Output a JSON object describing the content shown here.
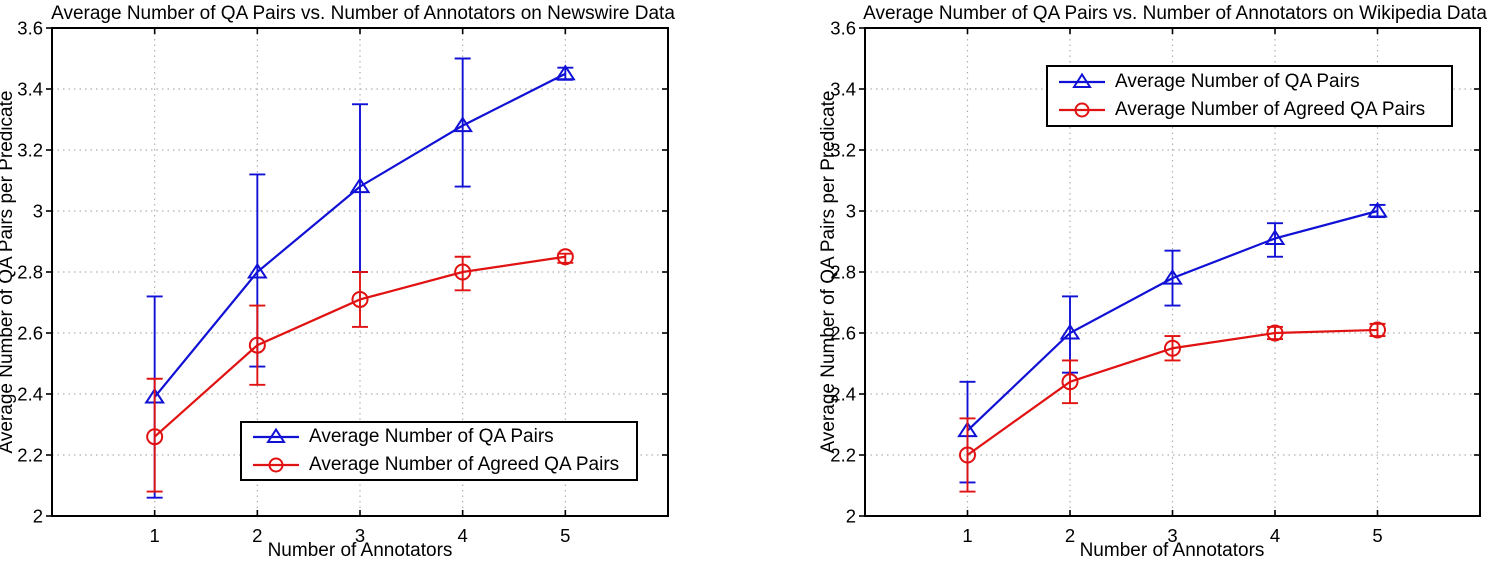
{
  "figure": {
    "background": "#ffffff",
    "grid_color": "#b0b0b0",
    "frame_color": "#000000"
  },
  "chart_data": [
    {
      "id": "newswire",
      "type": "line",
      "title": "Average Number of QA Pairs vs. Number of Annotators on Newswire Data",
      "xlabel": "Number of Annotators",
      "ylabel": "Average Number of QA Pairs per Predicate",
      "x": [
        1,
        2,
        3,
        4,
        5
      ],
      "xlim": [
        0,
        6
      ],
      "ylim": [
        2,
        3.6
      ],
      "xticks": [
        1,
        2,
        3,
        4,
        5
      ],
      "xtick_labels": [
        "1",
        "2",
        "3",
        "4",
        "5"
      ],
      "yticks": [
        2,
        2.2,
        2.4,
        2.6,
        2.8,
        3,
        3.2,
        3.4,
        3.6
      ],
      "ytick_labels": [
        "2",
        "2.2",
        "2.4",
        "2.6",
        "2.8",
        "3",
        "3.2",
        "3.4",
        "3.6"
      ],
      "grid": true,
      "legend_position": "bottom-right-inside",
      "series": [
        {
          "name": "Average Number of QA Pairs",
          "color": "#1111d6",
          "marker": "triangle",
          "y": [
            2.39,
            2.8,
            3.08,
            3.28,
            3.45
          ],
          "y_upper": [
            2.72,
            3.12,
            3.35,
            3.5,
            3.47
          ],
          "y_lower": [
            2.06,
            2.49,
            2.8,
            3.08,
            3.43
          ]
        },
        {
          "name": "Average Number of Agreed QA Pairs",
          "color": "#e01212",
          "marker": "circle",
          "y": [
            2.26,
            2.56,
            2.71,
            2.8,
            2.85
          ],
          "y_upper": [
            2.45,
            2.69,
            2.8,
            2.85,
            2.86
          ],
          "y_lower": [
            2.08,
            2.43,
            2.62,
            2.74,
            2.83
          ]
        }
      ]
    },
    {
      "id": "wikipedia",
      "type": "line",
      "title": "Average Number of QA Pairs vs. Number of Annotators on Wikipedia Data",
      "xlabel": "Number of Annotators",
      "ylabel": "Average Number of QA Pairs per Predicate",
      "x": [
        1,
        2,
        3,
        4,
        5
      ],
      "xlim": [
        0,
        6
      ],
      "ylim": [
        2,
        3.6
      ],
      "xticks": [
        1,
        2,
        3,
        4,
        5
      ],
      "xtick_labels": [
        "1",
        "2",
        "3",
        "4",
        "5"
      ],
      "yticks": [
        2,
        2.2,
        2.4,
        2.6,
        2.8,
        3,
        3.2,
        3.4,
        3.6
      ],
      "ytick_labels": [
        "2",
        "2.2",
        "2.4",
        "2.6",
        "2.8",
        "3",
        "3.2",
        "3.4",
        "3.6"
      ],
      "grid": true,
      "legend_position": "top-inside",
      "series": [
        {
          "name": "Average Number of QA Pairs",
          "color": "#1111d6",
          "marker": "triangle",
          "y": [
            2.28,
            2.6,
            2.78,
            2.91,
            3.0
          ],
          "y_upper": [
            2.44,
            2.72,
            2.87,
            2.96,
            3.02
          ],
          "y_lower": [
            2.11,
            2.47,
            2.69,
            2.85,
            2.98
          ]
        },
        {
          "name": "Average Number of Agreed QA Pairs",
          "color": "#e01212",
          "marker": "circle",
          "y": [
            2.2,
            2.44,
            2.55,
            2.6,
            2.61
          ],
          "y_upper": [
            2.32,
            2.51,
            2.59,
            2.62,
            2.63
          ],
          "y_lower": [
            2.08,
            2.37,
            2.51,
            2.58,
            2.59
          ]
        }
      ]
    }
  ]
}
